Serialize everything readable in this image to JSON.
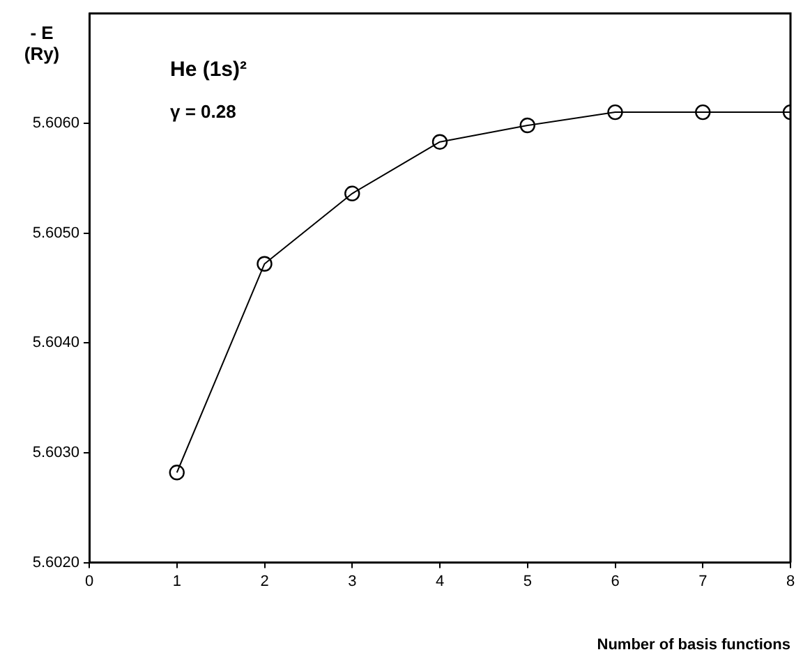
{
  "chart_data": {
    "type": "line",
    "xlabel": "Number of basis functions",
    "ylabel": "- E\n(Ry)",
    "annotations": [
      "He (1s)²",
      "γ = 0.28"
    ],
    "x": [
      1,
      2,
      3,
      4,
      5,
      6,
      7,
      8
    ],
    "series": [
      {
        "color": "#000000",
        "values": [
          5.60282,
          5.60472,
          5.60536,
          5.60583,
          5.60598,
          5.6061,
          5.6061,
          5.6061
        ]
      }
    ],
    "xlim": [
      0,
      8
    ],
    "xticks": [
      0,
      1,
      2,
      3,
      4,
      5,
      6,
      7,
      8
    ],
    "ylim": [
      5.602,
      5.607
    ],
    "yticks": [
      {
        "value": 5.602,
        "label": "5.6020"
      },
      {
        "value": 5.603,
        "label": "5.6030"
      },
      {
        "value": 5.604,
        "label": "5.6040"
      },
      {
        "value": 5.605,
        "label": "5.6050"
      },
      {
        "value": 5.606,
        "label": "5.6060"
      }
    ],
    "grid": false,
    "legend": false,
    "marker": "circle",
    "line_style": "solid"
  }
}
